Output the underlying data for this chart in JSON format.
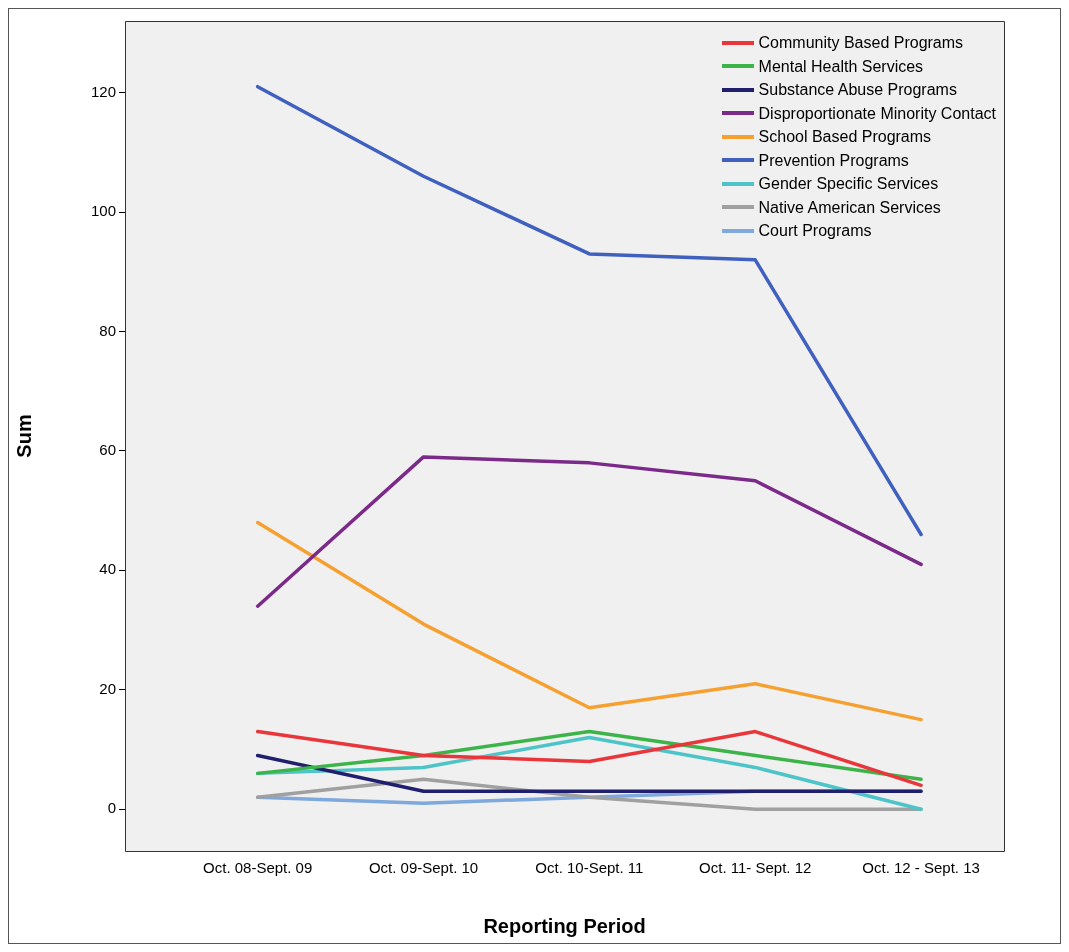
{
  "chart_data": {
    "type": "line",
    "xlabel": "Reporting Period",
    "ylabel": "Sum",
    "categories": [
      "Oct. 08-Sept. 09",
      "Oct. 09-Sept. 10",
      "Oct. 10-Sept. 11",
      "Oct. 11- Sept. 12",
      "Oct. 12 - Sept. 13"
    ],
    "ylim": [
      -7,
      132
    ],
    "yticks": [
      0,
      20,
      40,
      60,
      80,
      100,
      120
    ],
    "grid": false,
    "legend": "top right",
    "marker": "none",
    "line_style": "solid",
    "series": [
      {
        "name": "Community Based Programs",
        "color": "#e8363a",
        "values": [
          13,
          9,
          8,
          13,
          4
        ]
      },
      {
        "name": "Mental Health Services",
        "color": "#3cb44a",
        "values": [
          6,
          9,
          13,
          9,
          5
        ]
      },
      {
        "name": "Substance Abuse Programs",
        "color": "#1f1f6e",
        "values": [
          9,
          3,
          3,
          3,
          3
        ]
      },
      {
        "name": "Disproportionate Minority Contact",
        "color": "#7b2a8a",
        "values": [
          34,
          59,
          58,
          55,
          41
        ]
      },
      {
        "name": "School Based Programs",
        "color": "#f5a030",
        "values": [
          48,
          31,
          17,
          21,
          15
        ]
      },
      {
        "name": "Prevention Programs",
        "color": "#4060c0",
        "values": [
          121,
          106,
          93,
          92,
          46
        ]
      },
      {
        "name": "Gender Specific Services",
        "color": "#4cc4c8",
        "values": [
          6,
          7,
          12,
          7,
          0
        ]
      },
      {
        "name": "Native American Services",
        "color": "#a0a0a0",
        "values": [
          2,
          5,
          2,
          0,
          0
        ]
      },
      {
        "name": "Court Programs",
        "color": "#7fa8dc",
        "values": [
          2,
          1,
          2,
          3,
          3
        ]
      }
    ]
  }
}
